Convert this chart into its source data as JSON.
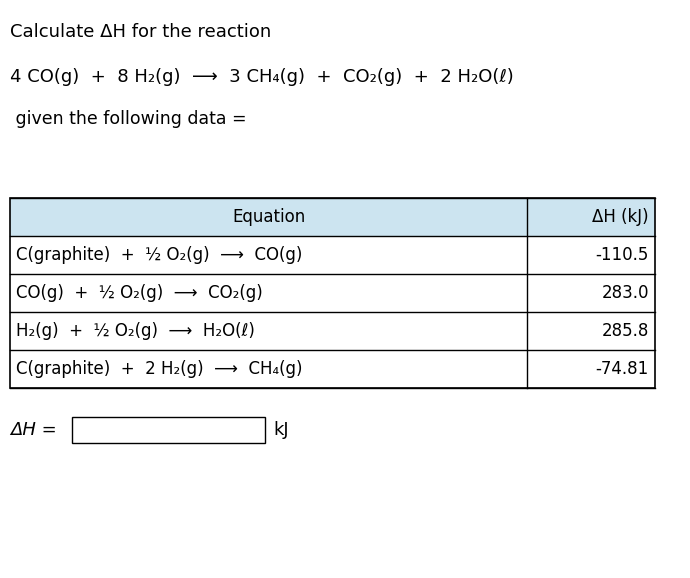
{
  "title_line1": "Calculate ΔH for the reaction",
  "reaction": "4 CO(g)  +  8 H₂(g)  ⟶  3 CH₄(g)  +  CO₂(g)  +  2 H₂O(ℓ)",
  "given_text": " given the following data =",
  "header_eq": "Equation",
  "header_dH": "ΔH (kJ)",
  "rows": [
    {
      "eq": "C(graphite)  +  ½ O₂(g)  ⟶  CO(g)",
      "dH": "-110.5"
    },
    {
      "eq": "CO(g)  +  ½ O₂(g)  ⟶  CO₂(g)",
      "dH": "283.0"
    },
    {
      "eq": "H₂(g)  +  ½ O₂(g)  ⟶  H₂O(ℓ)",
      "dH": "285.8"
    },
    {
      "eq": "C(graphite)  +  2 H₂(g)  ⟶  CH₄(g)",
      "dH": "-74.81"
    }
  ],
  "answer_label": "ΔH =",
  "answer_unit": "kJ",
  "header_bg": "#cce4f0",
  "table_border": "#000000",
  "bg_color": "#ffffff",
  "font_size_title": 13,
  "font_size_reaction": 13,
  "font_size_table": 12,
  "font_size_given": 12.5,
  "font_size_answer": 13
}
